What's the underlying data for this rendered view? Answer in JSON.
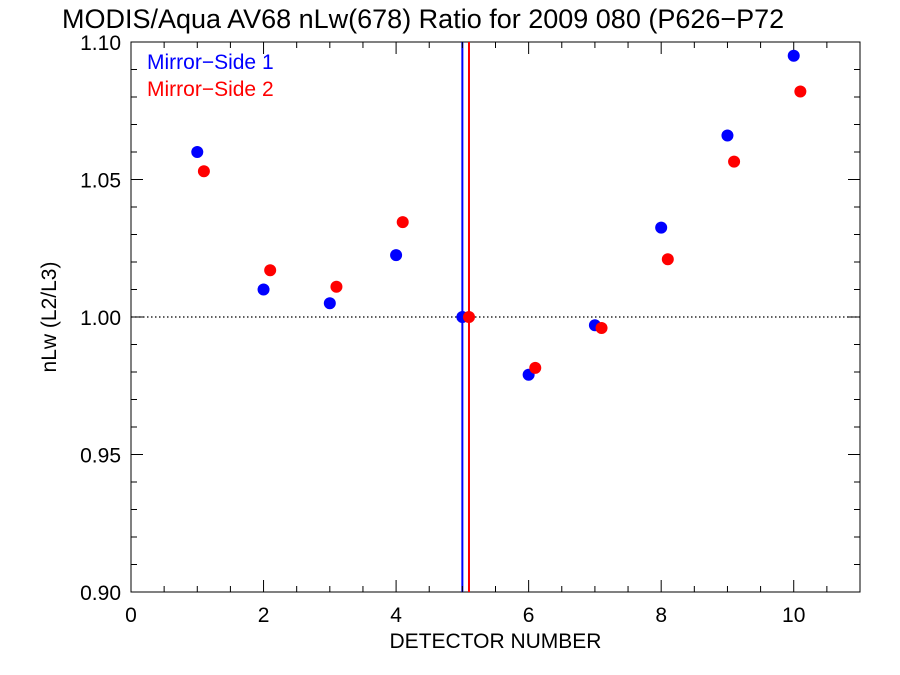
{
  "chart_data": {
    "type": "scatter",
    "title": "MODIS/Aqua AV68 nLw(678) Ratio for 2009 080 (P626−P72",
    "xlabel": "DETECTOR NUMBER",
    "ylabel": "nLw (L2/L3)",
    "xlim": [
      0,
      11
    ],
    "ylim": [
      0.9,
      1.1
    ],
    "x_ticks": [
      0,
      2,
      4,
      6,
      8,
      10
    ],
    "x_tick_labels": [
      "0",
      "2",
      "4",
      "6",
      "8",
      "10"
    ],
    "y_ticks": [
      0.9,
      0.95,
      1.0,
      1.05,
      1.1
    ],
    "y_tick_labels": [
      "0.90",
      "0.95",
      "1.00",
      "1.05",
      "1.10"
    ],
    "legend_position": "top-left",
    "reference_line": {
      "y": 1.0,
      "style": "dotted",
      "color": "#000000"
    },
    "series": [
      {
        "name": "Mirror−Side 1",
        "color": "#0000ff",
        "x": [
          1,
          2,
          3,
          4,
          5,
          6,
          7,
          8,
          9,
          10
        ],
        "y": [
          1.06,
          1.01,
          1.005,
          1.0225,
          1.0,
          0.979,
          0.997,
          1.0325,
          1.066,
          1.095
        ],
        "vline_x": 5.0
      },
      {
        "name": "Mirror−Side 2",
        "color": "#ff0000",
        "x": [
          1.1,
          2.1,
          3.1,
          4.1,
          5.1,
          6.1,
          7.1,
          8.1,
          9.1,
          10.1
        ],
        "y": [
          1.053,
          1.017,
          1.011,
          1.0345,
          1.0,
          0.9815,
          0.996,
          1.021,
          1.0565,
          1.082
        ],
        "vline_x": 5.1
      }
    ]
  }
}
